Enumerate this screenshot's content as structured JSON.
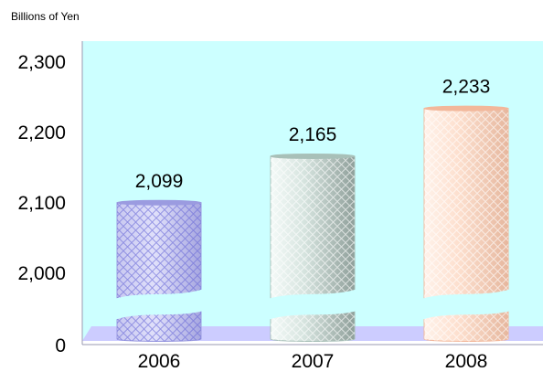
{
  "chart_data": {
    "type": "bar",
    "unit_label": "Billions of Yen",
    "categories": [
      "2006",
      "2007",
      "2008"
    ],
    "values": [
      2099,
      2165,
      2233
    ],
    "value_labels": [
      "2,099",
      "2,165",
      "2,233"
    ],
    "y_ticks": [
      {
        "value": 0,
        "label": "0"
      },
      {
        "value": 2000,
        "label": "2,000"
      },
      {
        "value": 2100,
        "label": "2,100"
      },
      {
        "value": 2200,
        "label": "2,200"
      },
      {
        "value": 2300,
        "label": "2,300"
      }
    ],
    "axis_break": {
      "from": 0,
      "to": 2000
    },
    "ylim": [
      0,
      2300
    ],
    "colors": {
      "plot_background": "#ccffff",
      "floor": "#ccccff",
      "bars": [
        "#9b9be0",
        "#a8c0b8",
        "#f2b79a"
      ]
    },
    "bar_style": "3d-cylinder-with-lattice-pattern",
    "grid": false,
    "legend": false
  }
}
